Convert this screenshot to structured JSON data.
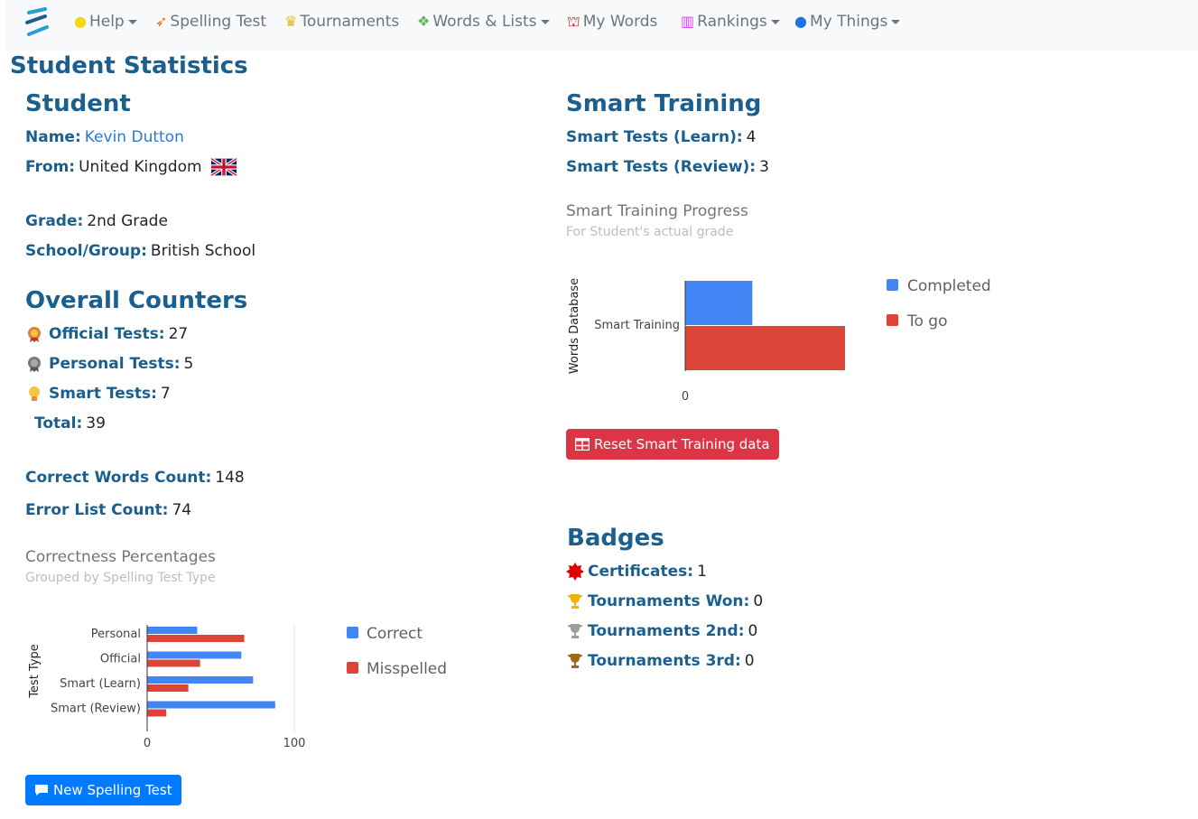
{
  "nav": {
    "items": [
      {
        "label": "Help",
        "icon": "lightbulb-icon",
        "dropdown": true
      },
      {
        "label": "Spelling Test",
        "icon": "rocket-icon",
        "dropdown": false
      },
      {
        "label": "Tournaments",
        "icon": "trophy-icon",
        "dropdown": false
      },
      {
        "label": "Words & Lists",
        "icon": "cubes-icon",
        "dropdown": true
      },
      {
        "label": "My Words",
        "icon": "basket-icon",
        "dropdown": false
      },
      {
        "label": "Rankings",
        "icon": "bar-chart-icon",
        "dropdown": true
      },
      {
        "label": "My Things",
        "icon": "user-icon",
        "dropdown": true
      }
    ]
  },
  "page_title": "Student Statistics",
  "student": {
    "heading": "Student",
    "name_label": "Name:",
    "name_value": "Kevin Dutton",
    "from_label": "From:",
    "from_value": "United Kingdom",
    "grade_label": "Grade:",
    "grade_value": "2nd Grade",
    "school_label": "School/Group:",
    "school_value": "British School"
  },
  "counters": {
    "heading": "Overall Counters",
    "official_label": "Official Tests:",
    "official_value": "27",
    "personal_label": "Personal Tests:",
    "personal_value": "5",
    "smart_label": "Smart Tests:",
    "smart_value": "7",
    "total_label": "Total:",
    "total_value": "39",
    "correct_label": "Correct Words Count:",
    "correct_value": "148",
    "error_label": "Error List Count:",
    "error_value": "74"
  },
  "correctness_chart": {
    "title": "Correctness Percentages",
    "subtitle": "Grouped by Spelling Test Type"
  },
  "smart_training": {
    "heading": "Smart Training",
    "learn_label": "Smart Tests (Learn):",
    "learn_value": "4",
    "review_label": "Smart Tests (Review):",
    "review_value": "3",
    "chart_title": "Smart Training Progress",
    "chart_subtitle": "For Student's actual grade"
  },
  "buttons": {
    "reset": "Reset Smart Training data",
    "new_test": "New Spelling Test"
  },
  "badges": {
    "heading": "Badges",
    "certificates_label": "Certificates:",
    "certificates_value": "1",
    "won_label": "Tournaments Won:",
    "won_value": "0",
    "second_label": "Tournaments 2nd:",
    "second_value": "0",
    "third_label": "Tournaments 3rd:",
    "third_value": "0"
  },
  "colors": {
    "accent": "#1b5f8f",
    "series_blue": "#4285f4",
    "series_red": "#db4437",
    "button_blue": "#007bff",
    "button_red": "#dc3545"
  },
  "chart_data": [
    {
      "type": "bar",
      "orientation": "horizontal",
      "title": "Correctness Percentages",
      "subtitle": "Grouped by Spelling Test Type",
      "ylabel": "Test Type",
      "categories": [
        "Personal",
        "Official",
        "Smart (Learn)",
        "Smart (Review)"
      ],
      "series": [
        {
          "name": "Correct",
          "values": [
            34,
            64,
            72,
            87
          ]
        },
        {
          "name": "Misspelled",
          "values": [
            66,
            36,
            28,
            13
          ]
        }
      ],
      "xlim": [
        0,
        100
      ],
      "x_ticks": [
        "0",
        "100"
      ],
      "legend": "right"
    },
    {
      "type": "bar",
      "orientation": "horizontal",
      "title": "Smart Training Progress",
      "subtitle": "For Student's actual grade",
      "ylabel": "Words Database",
      "categories": [
        "Smart Training"
      ],
      "series": [
        {
          "name": "Completed",
          "values": [
            42
          ]
        },
        {
          "name": "To go",
          "values": [
            100
          ]
        }
      ],
      "xlim": [
        0,
        100
      ],
      "x_ticks": [
        "0"
      ],
      "legend": "right"
    }
  ]
}
